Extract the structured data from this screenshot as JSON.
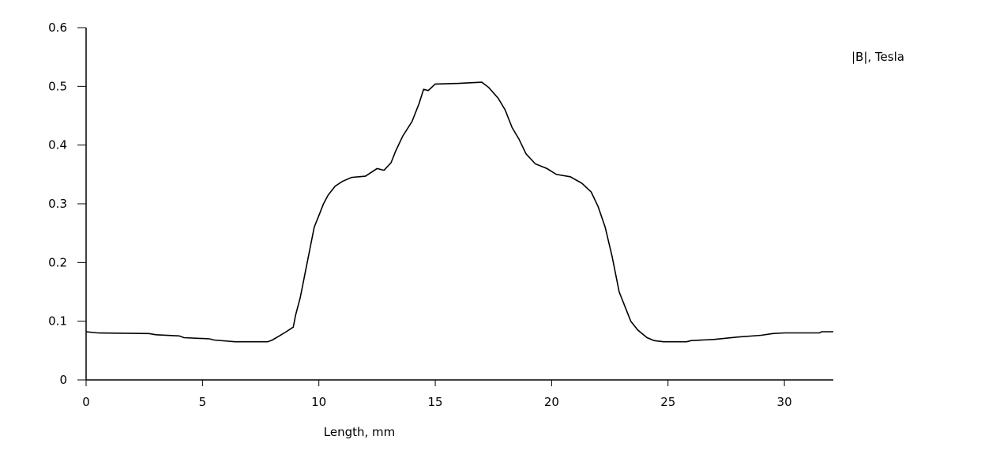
{
  "chart_data": {
    "type": "line",
    "title": "",
    "xlabel": "Length, mm",
    "ylabel": "",
    "xlim": [
      0,
      32.1
    ],
    "ylim": [
      0,
      0.6
    ],
    "xticks": [
      "0",
      "5",
      "10",
      "15",
      "20",
      "25",
      "30"
    ],
    "yticks": [
      "0",
      "0.1",
      "0.2",
      "0.3",
      "0.4",
      "0.5",
      "0.6"
    ],
    "grid": false,
    "legend_position": "top-right",
    "line_color": "#000000",
    "series": [
      {
        "name": "|B|, Tesla",
        "x": [
          0,
          0.5,
          2.7,
          3.0,
          4.0,
          4.2,
          5.3,
          5.5,
          6.4,
          7.8,
          8.0,
          8.3,
          8.6,
          8.9,
          9.0,
          9.2,
          9.4,
          9.6,
          9.8,
          10.0,
          10.2,
          10.4,
          10.7,
          11.0,
          11.4,
          12.0,
          12.5,
          12.8,
          13.1,
          13.3,
          13.6,
          14.0,
          14.3,
          14.5,
          14.7,
          15.0,
          16.0,
          17.0,
          17.3,
          17.7,
          18.0,
          18.3,
          18.6,
          18.9,
          19.3,
          19.8,
          20.2,
          20.8,
          21.3,
          21.7,
          22.0,
          22.3,
          22.6,
          22.9,
          23.1,
          23.4,
          23.7,
          24.1,
          24.4,
          24.8,
          25.8,
          26.0,
          27.0,
          28.0,
          29.0,
          29.5,
          30.0,
          31.5,
          31.6,
          32.1
        ],
        "y": [
          0.082,
          0.08,
          0.079,
          0.077,
          0.075,
          0.072,
          0.07,
          0.068,
          0.065,
          0.065,
          0.068,
          0.075,
          0.082,
          0.09,
          0.11,
          0.14,
          0.18,
          0.22,
          0.26,
          0.28,
          0.3,
          0.315,
          0.33,
          0.338,
          0.345,
          0.347,
          0.36,
          0.357,
          0.37,
          0.39,
          0.415,
          0.44,
          0.47,
          0.495,
          0.493,
          0.504,
          0.505,
          0.507,
          0.498,
          0.48,
          0.46,
          0.43,
          0.41,
          0.385,
          0.368,
          0.36,
          0.35,
          0.346,
          0.335,
          0.32,
          0.295,
          0.26,
          0.21,
          0.15,
          0.13,
          0.1,
          0.085,
          0.072,
          0.067,
          0.065,
          0.065,
          0.067,
          0.069,
          0.073,
          0.076,
          0.079,
          0.08,
          0.08,
          0.082,
          0.082
        ]
      }
    ]
  }
}
